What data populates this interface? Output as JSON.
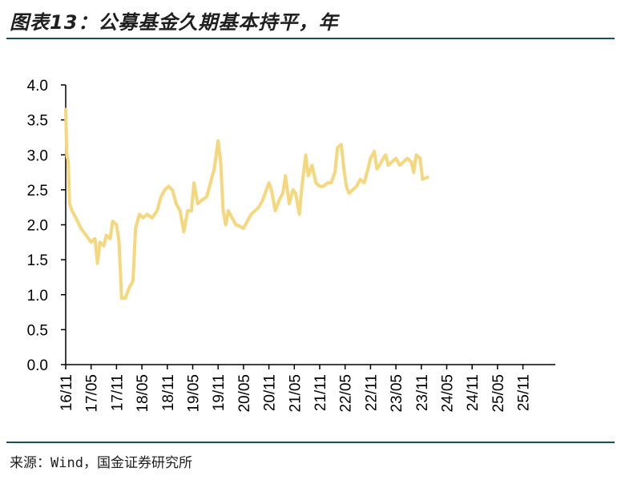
{
  "title": "图表13：公募基金久期基本持平，年",
  "source": "来源：Wind，国金证券研究所",
  "colors": {
    "line": "#F5D77E",
    "axis": "#000000",
    "rule": "#1F4E5A"
  },
  "chart_data": {
    "type": "line",
    "title": "公募基金久期基本持平，年",
    "xlabel": "",
    "ylabel": "",
    "ylim": [
      0,
      4
    ],
    "yticks": [
      "0.0",
      "0.5",
      "1.0",
      "1.5",
      "2.0",
      "2.5",
      "3.0",
      "3.5",
      "4.0"
    ],
    "xticks": [
      "16/11",
      "17/05",
      "17/11",
      "18/05",
      "18/11",
      "19/05",
      "19/11",
      "20/05",
      "20/11",
      "21/05",
      "21/11",
      "22/05",
      "22/11",
      "23/05",
      "23/11",
      "24/05",
      "24/11",
      "25/05",
      "25/11"
    ],
    "series": [
      {
        "name": "公募基金久期",
        "color": "#F5D77E",
        "points": [
          [
            0.0,
            3.65
          ],
          [
            0.04,
            3.0
          ],
          [
            0.1,
            2.9
          ],
          [
            0.15,
            2.3
          ],
          [
            0.25,
            2.2
          ],
          [
            0.4,
            2.1
          ],
          [
            0.6,
            1.95
          ],
          [
            0.8,
            1.85
          ],
          [
            1.0,
            1.75
          ],
          [
            1.15,
            1.8
          ],
          [
            1.25,
            1.45
          ],
          [
            1.35,
            1.75
          ],
          [
            1.5,
            1.7
          ],
          [
            1.6,
            1.85
          ],
          [
            1.75,
            1.8
          ],
          [
            1.85,
            2.05
          ],
          [
            2.0,
            2.0
          ],
          [
            2.1,
            1.75
          ],
          [
            2.2,
            0.95
          ],
          [
            2.35,
            0.95
          ],
          [
            2.5,
            1.1
          ],
          [
            2.65,
            1.2
          ],
          [
            2.75,
            1.95
          ],
          [
            2.9,
            2.15
          ],
          [
            3.05,
            2.1
          ],
          [
            3.2,
            2.15
          ],
          [
            3.4,
            2.1
          ],
          [
            3.6,
            2.2
          ],
          [
            3.75,
            2.4
          ],
          [
            3.9,
            2.5
          ],
          [
            4.05,
            2.55
          ],
          [
            4.2,
            2.5
          ],
          [
            4.35,
            2.3
          ],
          [
            4.5,
            2.2
          ],
          [
            4.65,
            1.9
          ],
          [
            4.8,
            2.2
          ],
          [
            4.95,
            2.2
          ],
          [
            5.05,
            2.6
          ],
          [
            5.2,
            2.3
          ],
          [
            5.35,
            2.35
          ],
          [
            5.55,
            2.4
          ],
          [
            5.7,
            2.6
          ],
          [
            5.85,
            2.8
          ],
          [
            6.0,
            3.2
          ],
          [
            6.1,
            2.9
          ],
          [
            6.2,
            2.2
          ],
          [
            6.3,
            2.0
          ],
          [
            6.4,
            2.2
          ],
          [
            6.55,
            2.1
          ],
          [
            6.7,
            2.0
          ],
          [
            6.85,
            1.98
          ],
          [
            7.0,
            1.95
          ],
          [
            7.15,
            2.05
          ],
          [
            7.3,
            2.15
          ],
          [
            7.45,
            2.2
          ],
          [
            7.6,
            2.25
          ],
          [
            7.75,
            2.35
          ],
          [
            7.9,
            2.5
          ],
          [
            8.0,
            2.6
          ],
          [
            8.1,
            2.5
          ],
          [
            8.25,
            2.2
          ],
          [
            8.4,
            2.35
          ],
          [
            8.55,
            2.45
          ],
          [
            8.65,
            2.7
          ],
          [
            8.8,
            2.3
          ],
          [
            8.95,
            2.5
          ],
          [
            9.05,
            2.45
          ],
          [
            9.2,
            2.15
          ],
          [
            9.3,
            2.55
          ],
          [
            9.45,
            3.0
          ],
          [
            9.55,
            2.7
          ],
          [
            9.7,
            2.85
          ],
          [
            9.85,
            2.6
          ],
          [
            10.0,
            2.55
          ],
          [
            10.15,
            2.55
          ],
          [
            10.3,
            2.6
          ],
          [
            10.45,
            2.6
          ],
          [
            10.6,
            2.75
          ],
          [
            10.7,
            3.1
          ],
          [
            10.85,
            3.15
          ],
          [
            10.95,
            2.8
          ],
          [
            11.05,
            2.55
          ],
          [
            11.15,
            2.45
          ],
          [
            11.3,
            2.5
          ],
          [
            11.45,
            2.55
          ],
          [
            11.6,
            2.65
          ],
          [
            11.75,
            2.6
          ],
          [
            11.9,
            2.8
          ],
          [
            12.0,
            2.95
          ],
          [
            12.15,
            3.05
          ],
          [
            12.25,
            2.8
          ],
          [
            12.35,
            2.85
          ],
          [
            12.5,
            2.95
          ],
          [
            12.6,
            3.0
          ],
          [
            12.7,
            2.85
          ],
          [
            12.85,
            2.9
          ],
          [
            13.0,
            2.95
          ],
          [
            13.15,
            2.85
          ],
          [
            13.3,
            2.9
          ],
          [
            13.45,
            2.95
          ],
          [
            13.6,
            2.9
          ],
          [
            13.7,
            2.75
          ],
          [
            13.8,
            3.0
          ],
          [
            13.95,
            2.95
          ],
          [
            14.05,
            2.65
          ],
          [
            14.25,
            2.68
          ]
        ]
      }
    ]
  }
}
